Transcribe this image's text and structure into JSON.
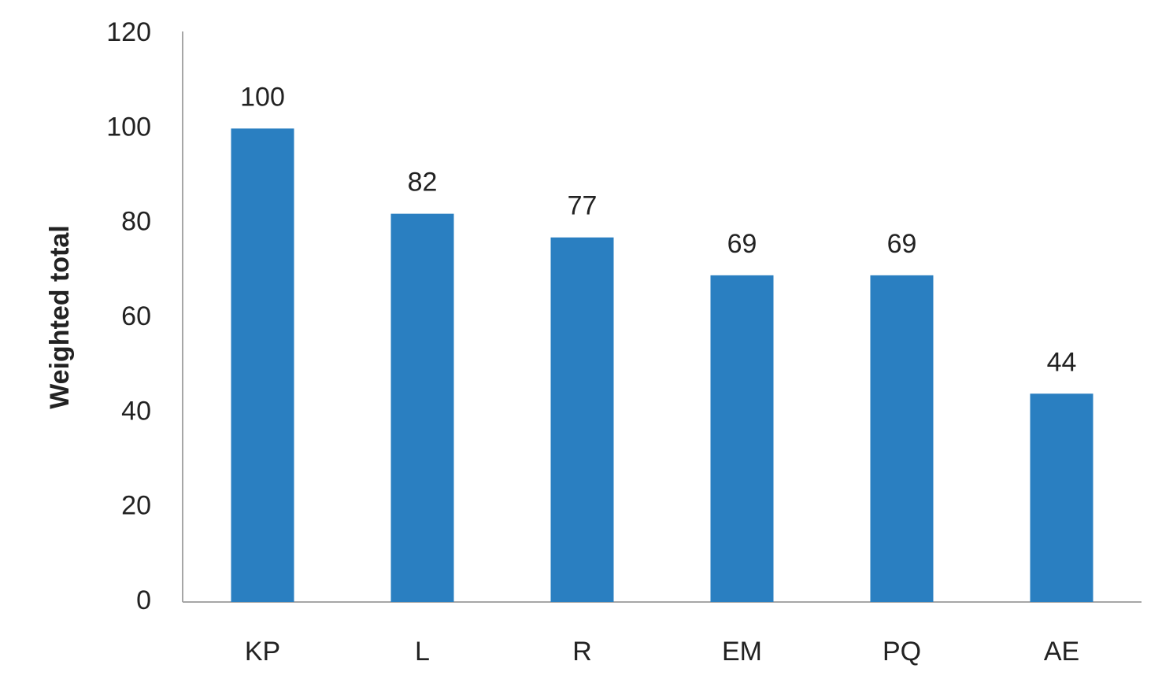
{
  "chart_data": {
    "type": "bar",
    "y_label": "Weighted total",
    "categories": [
      "KP",
      "L",
      "R",
      "EM",
      "PQ",
      "AE"
    ],
    "values": [
      100,
      82,
      77,
      69,
      69,
      44
    ],
    "color": "#2a7fc1",
    "ylim": [
      0,
      120
    ],
    "yticks": [
      0,
      20,
      40,
      60,
      80,
      100,
      120
    ],
    "grid": false,
    "data_labels": true
  }
}
